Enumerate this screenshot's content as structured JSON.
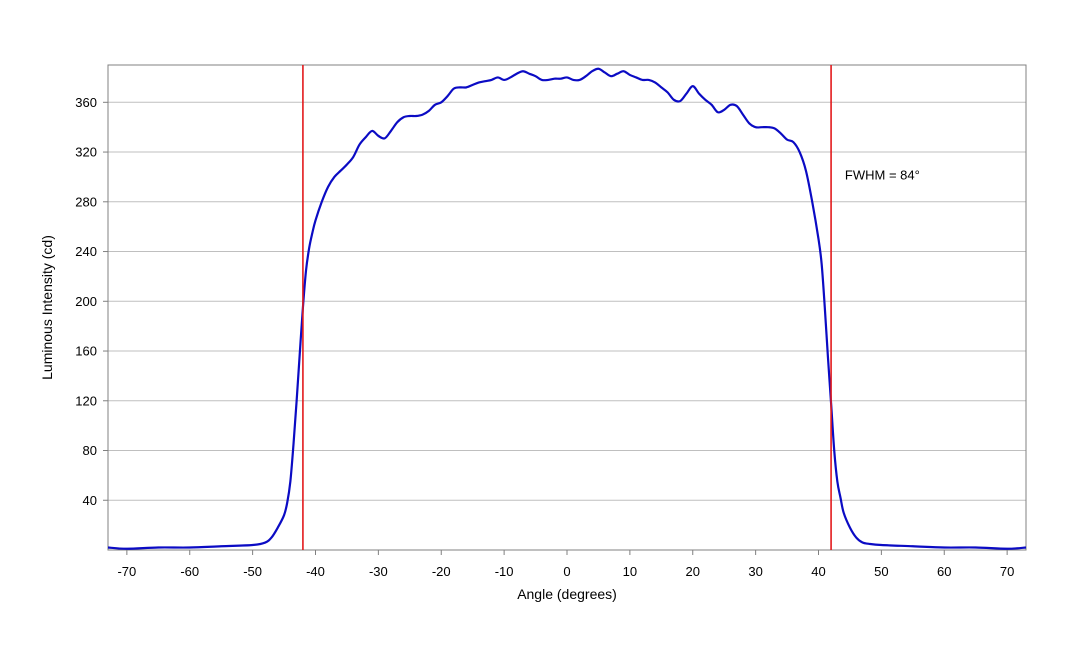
{
  "chart_data": {
    "type": "line",
    "title": "",
    "xlabel": "Angle (degrees)",
    "ylabel": "Luminous Intensity (cd)",
    "xlim": [
      -73,
      73
    ],
    "ylim": [
      0,
      390
    ],
    "x_ticks": [
      -70,
      -60,
      -50,
      -40,
      -30,
      -20,
      -10,
      0,
      10,
      20,
      30,
      40,
      50,
      60,
      70
    ],
    "x_tick_labels": [
      "-70",
      "-60",
      "-50",
      "-40",
      "-30",
      "-20",
      "-10",
      "0",
      "10",
      "20",
      "30",
      "40",
      "50",
      "60",
      "70"
    ],
    "y_ticks": [
      40,
      80,
      120,
      160,
      200,
      240,
      280,
      320,
      360
    ],
    "y_tick_labels": [
      "40",
      "80",
      "120",
      "160",
      "200",
      "240",
      "280",
      "320",
      "360"
    ],
    "grid": "horizontal",
    "series": [
      {
        "color": "#0b0bc4",
        "x": [
          -73,
          -70,
          -65,
          -60,
          -55,
          -50,
          -48,
          -47,
          -46,
          -45,
          -44.5,
          -44,
          -43.5,
          -43,
          -42.5,
          -42,
          -41.5,
          -41,
          -40.5,
          -40,
          -39,
          -38,
          -37,
          -36,
          -35,
          -34,
          -33,
          -32,
          -31,
          -30,
          -29,
          -28,
          -27,
          -26,
          -25,
          -24,
          -23,
          -22,
          -21,
          -20,
          -19,
          -18,
          -17,
          -16,
          -15,
          -14,
          -13,
          -12,
          -11,
          -10,
          -9,
          -8,
          -7,
          -6,
          -5,
          -4,
          -3,
          -2,
          -1,
          0,
          1,
          2,
          3,
          4,
          5,
          6,
          7,
          8,
          9,
          10,
          11,
          12,
          13,
          14,
          15,
          16,
          17,
          18,
          19,
          20,
          21,
          22,
          23,
          24,
          25,
          26,
          27,
          28,
          29,
          30,
          31,
          32,
          33,
          34,
          35,
          36,
          37,
          38,
          39,
          40,
          40.5,
          41,
          41.5,
          42,
          42.5,
          43,
          43.5,
          44,
          45,
          46,
          47,
          48,
          50,
          55,
          60,
          65,
          70,
          73
        ],
        "y": [
          2,
          1,
          2,
          2,
          3,
          4,
          6,
          10,
          18,
          28,
          38,
          55,
          85,
          120,
          158,
          195,
          225,
          243,
          255,
          265,
          280,
          292,
          300,
          305,
          310,
          316,
          326,
          332,
          337,
          333,
          331,
          337,
          344,
          348,
          349,
          349,
          350,
          353,
          358,
          360,
          365,
          371,
          372,
          372,
          374,
          376,
          377,
          378,
          380,
          378,
          380,
          383,
          385,
          383,
          381,
          378,
          378,
          379,
          379,
          380,
          378,
          378,
          381,
          385,
          387,
          384,
          381,
          383,
          385,
          382,
          380,
          378,
          378,
          376,
          372,
          368,
          362,
          361,
          367,
          373,
          367,
          362,
          358,
          352,
          354,
          358,
          357,
          350,
          343,
          340,
          340,
          340,
          339,
          335,
          330,
          328,
          320,
          305,
          280,
          250,
          230,
          195,
          155,
          118,
          80,
          55,
          42,
          30,
          18,
          10,
          6,
          5,
          4,
          3,
          2,
          2,
          1,
          2
        ]
      }
    ],
    "reference_lines": [
      {
        "axis": "x",
        "value": -42,
        "color": "#e31a1c"
      },
      {
        "axis": "x",
        "value": 42,
        "color": "#e31a1c"
      }
    ],
    "annotations": [
      {
        "text": "FWHM = 84°",
        "x": 44.2,
        "y": 298
      }
    ]
  },
  "colors": {
    "grid": "#bfbfbf",
    "axis": "#808080",
    "series": "#0b0bc4",
    "reference": "#e31a1c"
  }
}
